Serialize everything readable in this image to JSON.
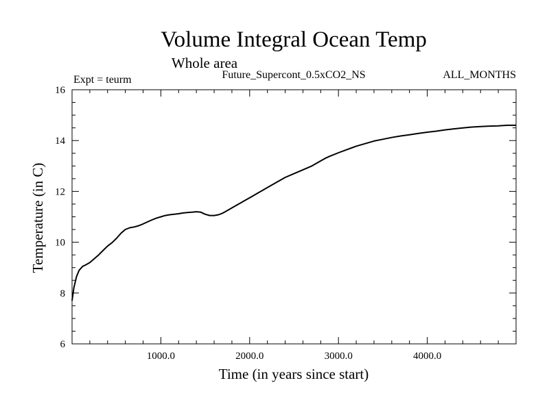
{
  "chart_data": {
    "type": "line",
    "title": "Volume Integral Ocean Temp",
    "subtitle": "Whole area",
    "experiment": "Expt = teurm",
    "run_name": "Future_Supercont_0.5xCO2_NS",
    "months": "ALL_MONTHS",
    "xlabel": "Time (in years since start)",
    "ylabel": "Temperature (in C)",
    "xlim": [
      0,
      5000
    ],
    "ylim": [
      6,
      16
    ],
    "xticks": [
      1000,
      2000,
      3000,
      4000
    ],
    "xtick_labels": [
      "1000.0",
      "2000.0",
      "3000.0",
      "4000.0"
    ],
    "yticks": [
      6,
      8,
      10,
      12,
      14,
      16
    ],
    "ytick_labels": [
      "6",
      "8",
      "10",
      "12",
      "14",
      "16"
    ],
    "grid": false,
    "series": [
      {
        "name": "Volume Integral Ocean Temp",
        "color": "#000000",
        "x": [
          0,
          20,
          50,
          80,
          120,
          150,
          200,
          250,
          300,
          350,
          400,
          450,
          500,
          550,
          600,
          650,
          700,
          750,
          800,
          850,
          900,
          950,
          1000,
          1050,
          1100,
          1150,
          1200,
          1250,
          1300,
          1350,
          1400,
          1450,
          1500,
          1550,
          1600,
          1650,
          1700,
          1750,
          1800,
          1850,
          1900,
          1950,
          2000,
          2050,
          2100,
          2200,
          2300,
          2400,
          2500,
          2600,
          2700,
          2800,
          2850,
          2900,
          3000,
          3100,
          3200,
          3300,
          3400,
          3500,
          3600,
          3700,
          3800,
          3900,
          4000,
          4100,
          4200,
          4300,
          4400,
          4500,
          4600,
          4700,
          4800,
          4900,
          5000
        ],
        "values": [
          7.7,
          8.2,
          8.65,
          8.9,
          9.05,
          9.1,
          9.2,
          9.35,
          9.5,
          9.68,
          9.85,
          9.98,
          10.15,
          10.35,
          10.5,
          10.57,
          10.6,
          10.65,
          10.72,
          10.8,
          10.88,
          10.95,
          11.0,
          11.05,
          11.08,
          11.1,
          11.12,
          11.15,
          11.17,
          11.18,
          11.2,
          11.18,
          11.1,
          11.05,
          11.05,
          11.08,
          11.15,
          11.25,
          11.35,
          11.45,
          11.55,
          11.65,
          11.75,
          11.85,
          11.95,
          12.15,
          12.35,
          12.55,
          12.7,
          12.85,
          13.0,
          13.2,
          13.3,
          13.38,
          13.52,
          13.65,
          13.78,
          13.88,
          13.98,
          14.05,
          14.12,
          14.18,
          14.23,
          14.28,
          14.33,
          14.37,
          14.42,
          14.46,
          14.5,
          14.53,
          14.55,
          14.57,
          14.58,
          14.6,
          14.6
        ]
      }
    ]
  }
}
